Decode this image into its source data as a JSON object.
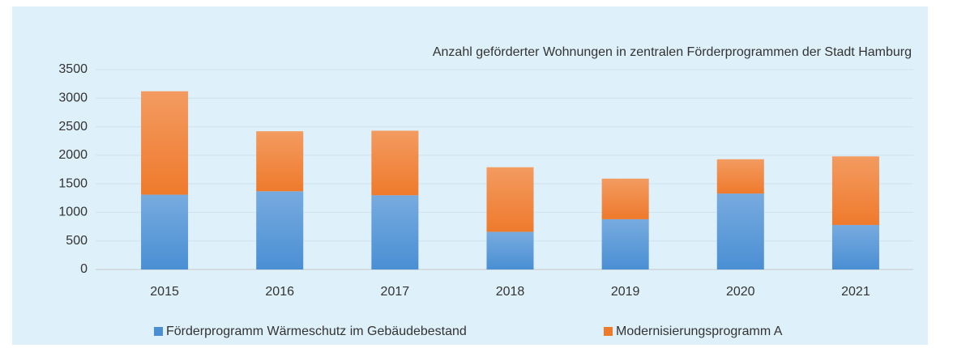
{
  "chart_data": {
    "type": "stacked-bar",
    "title": "Anzahl geförderter Wohnungen in zentralen Förderprogrammen der Stadt Hamburg",
    "categories": [
      "2015",
      "2016",
      "2017",
      "2018",
      "2019",
      "2020",
      "2021"
    ],
    "series": [
      {
        "name": "Förderprogramm Wärmeschutz im Gebäudebestand",
        "color": "#4a8fd4",
        "values": [
          1310,
          1370,
          1300,
          660,
          880,
          1330,
          780
        ]
      },
      {
        "name": "Modernisierungsprogramm A",
        "color": "#ef7a2c",
        "values": [
          1810,
          1050,
          1130,
          1130,
          710,
          600,
          1200
        ]
      }
    ],
    "ylim": [
      0,
      3500
    ],
    "yticks": [
      0,
      500,
      1000,
      1500,
      2000,
      2500,
      3000,
      3500
    ],
    "grid": true,
    "legend": "bottom"
  }
}
